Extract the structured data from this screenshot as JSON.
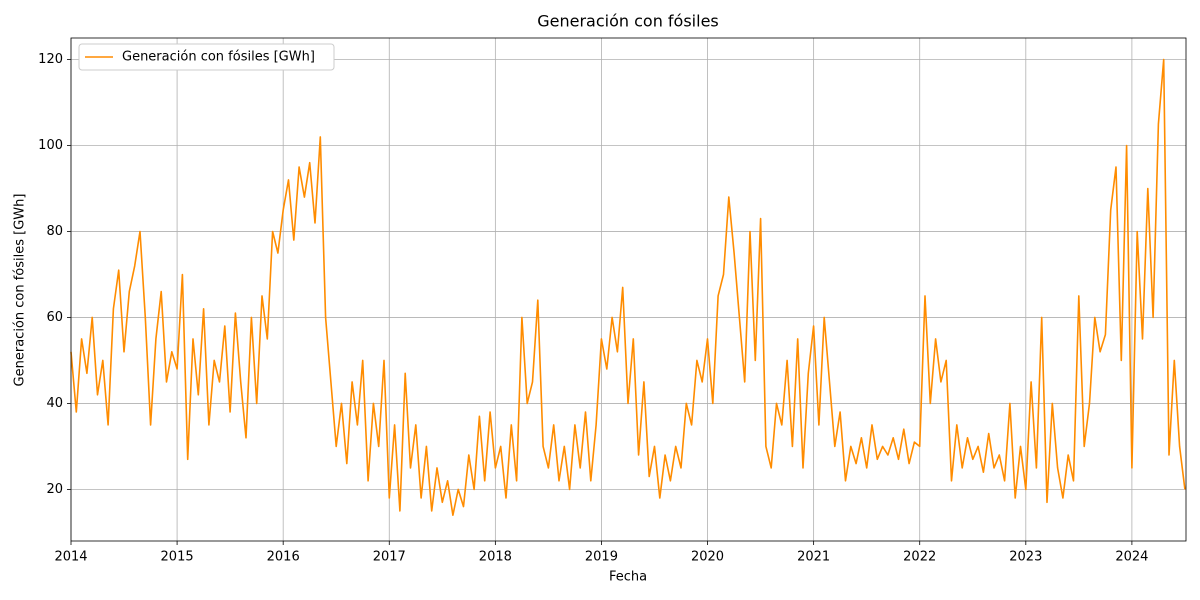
{
  "chart_data": {
    "type": "line",
    "title": "Generación con fósiles",
    "xlabel": "Fecha",
    "ylabel": "Generación con fósiles [GWh]",
    "x": [
      2014.0,
      2014.05,
      2014.1,
      2014.15,
      2014.2,
      2014.25,
      2014.3,
      2014.35,
      2014.4,
      2014.45,
      2014.5,
      2014.55,
      2014.6,
      2014.65,
      2014.7,
      2014.75,
      2014.8,
      2014.85,
      2014.9,
      2014.95,
      2015.0,
      2015.05,
      2015.1,
      2015.15,
      2015.2,
      2015.25,
      2015.3,
      2015.35,
      2015.4,
      2015.45,
      2015.5,
      2015.55,
      2015.6,
      2015.65,
      2015.7,
      2015.75,
      2015.8,
      2015.85,
      2015.9,
      2015.95,
      2016.0,
      2016.05,
      2016.1,
      2016.15,
      2016.2,
      2016.25,
      2016.3,
      2016.35,
      2016.4,
      2016.45,
      2016.5,
      2016.55,
      2016.6,
      2016.65,
      2016.7,
      2016.75,
      2016.8,
      2016.85,
      2016.9,
      2016.95,
      2017.0,
      2017.05,
      2017.1,
      2017.15,
      2017.2,
      2017.25,
      2017.3,
      2017.35,
      2017.4,
      2017.45,
      2017.5,
      2017.55,
      2017.6,
      2017.65,
      2017.7,
      2017.75,
      2017.8,
      2017.85,
      2017.9,
      2017.95,
      2018.0,
      2018.05,
      2018.1,
      2018.15,
      2018.2,
      2018.25,
      2018.3,
      2018.35,
      2018.4,
      2018.45,
      2018.5,
      2018.55,
      2018.6,
      2018.65,
      2018.7,
      2018.75,
      2018.8,
      2018.85,
      2018.9,
      2018.95,
      2019.0,
      2019.05,
      2019.1,
      2019.15,
      2019.2,
      2019.25,
      2019.3,
      2019.35,
      2019.4,
      2019.45,
      2019.5,
      2019.55,
      2019.6,
      2019.65,
      2019.7,
      2019.75,
      2019.8,
      2019.85,
      2019.9,
      2019.95,
      2020.0,
      2020.05,
      2020.1,
      2020.15,
      2020.2,
      2020.25,
      2020.3,
      2020.35,
      2020.4,
      2020.45,
      2020.5,
      2020.55,
      2020.6,
      2020.65,
      2020.7,
      2020.75,
      2020.8,
      2020.85,
      2020.9,
      2020.95,
      2021.0,
      2021.05,
      2021.1,
      2021.15,
      2021.2,
      2021.25,
      2021.3,
      2021.35,
      2021.4,
      2021.45,
      2021.5,
      2021.55,
      2021.6,
      2021.65,
      2021.7,
      2021.75,
      2021.8,
      2021.85,
      2021.9,
      2021.95,
      2022.0,
      2022.05,
      2022.1,
      2022.15,
      2022.2,
      2022.25,
      2022.3,
      2022.35,
      2022.4,
      2022.45,
      2022.5,
      2022.55,
      2022.6,
      2022.65,
      2022.7,
      2022.75,
      2022.8,
      2022.85,
      2022.9,
      2022.95,
      2023.0,
      2023.05,
      2023.1,
      2023.15,
      2023.2,
      2023.25,
      2023.3,
      2023.35,
      2023.4,
      2023.45,
      2023.5,
      2023.55,
      2023.6,
      2023.65,
      2023.7,
      2023.75,
      2023.8,
      2023.85,
      2023.9,
      2023.95,
      2024.0,
      2024.05,
      2024.1,
      2024.15,
      2024.2,
      2024.25,
      2024.3,
      2024.35,
      2024.4,
      2024.45,
      2024.5
    ],
    "series": [
      {
        "name": "Generación con fósiles [GWh]",
        "color": "#ff8c00",
        "values": [
          52,
          38,
          55,
          47,
          60,
          42,
          50,
          35,
          62,
          71,
          52,
          66,
          72,
          80,
          60,
          35,
          55,
          66,
          45,
          52,
          48,
          70,
          27,
          55,
          42,
          62,
          35,
          50,
          45,
          58,
          38,
          61,
          45,
          32,
          60,
          40,
          65,
          55,
          80,
          75,
          85,
          92,
          78,
          95,
          88,
          96,
          82,
          102,
          60,
          45,
          30,
          40,
          26,
          45,
          35,
          50,
          22,
          40,
          30,
          50,
          18,
          35,
          15,
          47,
          25,
          35,
          18,
          30,
          15,
          25,
          17,
          22,
          14,
          20,
          16,
          28,
          20,
          37,
          22,
          38,
          25,
          30,
          18,
          35,
          22,
          60,
          40,
          45,
          64,
          30,
          25,
          35,
          22,
          30,
          20,
          35,
          25,
          38,
          22,
          35,
          55,
          48,
          60,
          52,
          67,
          40,
          55,
          28,
          45,
          23,
          30,
          18,
          28,
          22,
          30,
          25,
          40,
          35,
          50,
          45,
          55,
          40,
          65,
          70,
          88,
          75,
          60,
          45,
          80,
          50,
          83,
          30,
          25,
          40,
          35,
          50,
          30,
          55,
          25,
          47,
          58,
          35,
          60,
          45,
          30,
          38,
          22,
          30,
          26,
          32,
          25,
          35,
          27,
          30,
          28,
          32,
          27,
          34,
          26,
          31,
          30,
          65,
          40,
          55,
          45,
          50,
          22,
          35,
          25,
          32,
          27,
          30,
          24,
          33,
          25,
          28,
          22,
          40,
          18,
          30,
          20,
          45,
          25,
          60,
          17,
          40,
          25,
          18,
          28,
          22,
          65,
          30,
          40,
          60,
          52,
          56,
          85,
          95,
          50,
          100,
          25,
          80,
          55,
          90,
          60,
          105,
          120,
          28,
          50,
          30,
          20
        ]
      }
    ],
    "xlim": [
      2014,
      2024.51
    ],
    "xticks": [
      2014,
      2015,
      2016,
      2017,
      2018,
      2019,
      2020,
      2021,
      2022,
      2023,
      2024
    ],
    "ylim": [
      8,
      125
    ],
    "yticks": [
      20,
      40,
      60,
      80,
      100,
      120
    ],
    "grid": true,
    "legend": "upper left"
  }
}
